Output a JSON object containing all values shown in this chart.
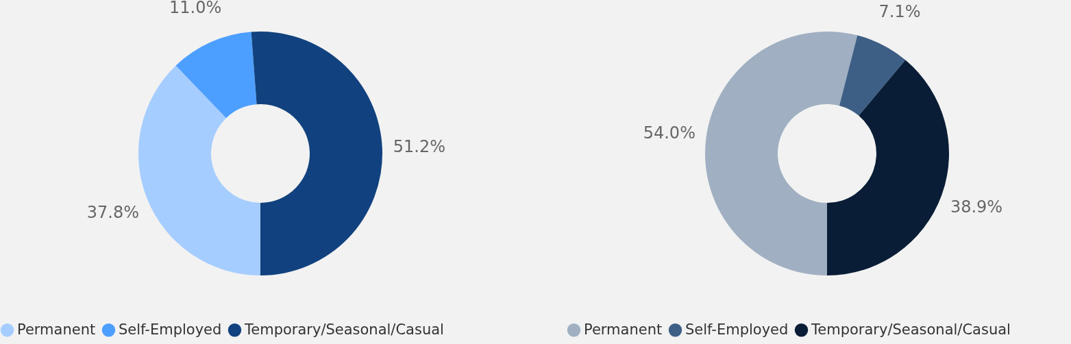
{
  "chart_data": [
    {
      "type": "donut",
      "categories": [
        "Permanent",
        "Self-Employed",
        "Temporary/Seasonal/Casual"
      ],
      "values": [
        37.8,
        11.0,
        51.2
      ],
      "colors": [
        "#a6cdff",
        "#4d9fff",
        "#11427f"
      ],
      "value_labels": [
        "37.8%",
        "11.0%",
        "51.2%"
      ],
      "legend": "bottom"
    },
    {
      "type": "donut",
      "categories": [
        "Permanent",
        "Self-Employed",
        "Temporary/Seasonal/Casual"
      ],
      "values": [
        54.0,
        7.1,
        38.9
      ],
      "colors": [
        "#a0b0c2",
        "#3e5f85",
        "#0a1d36"
      ],
      "value_labels": [
        "54.0%",
        "7.1%",
        "38.9%"
      ],
      "legend": "bottom"
    }
  ]
}
